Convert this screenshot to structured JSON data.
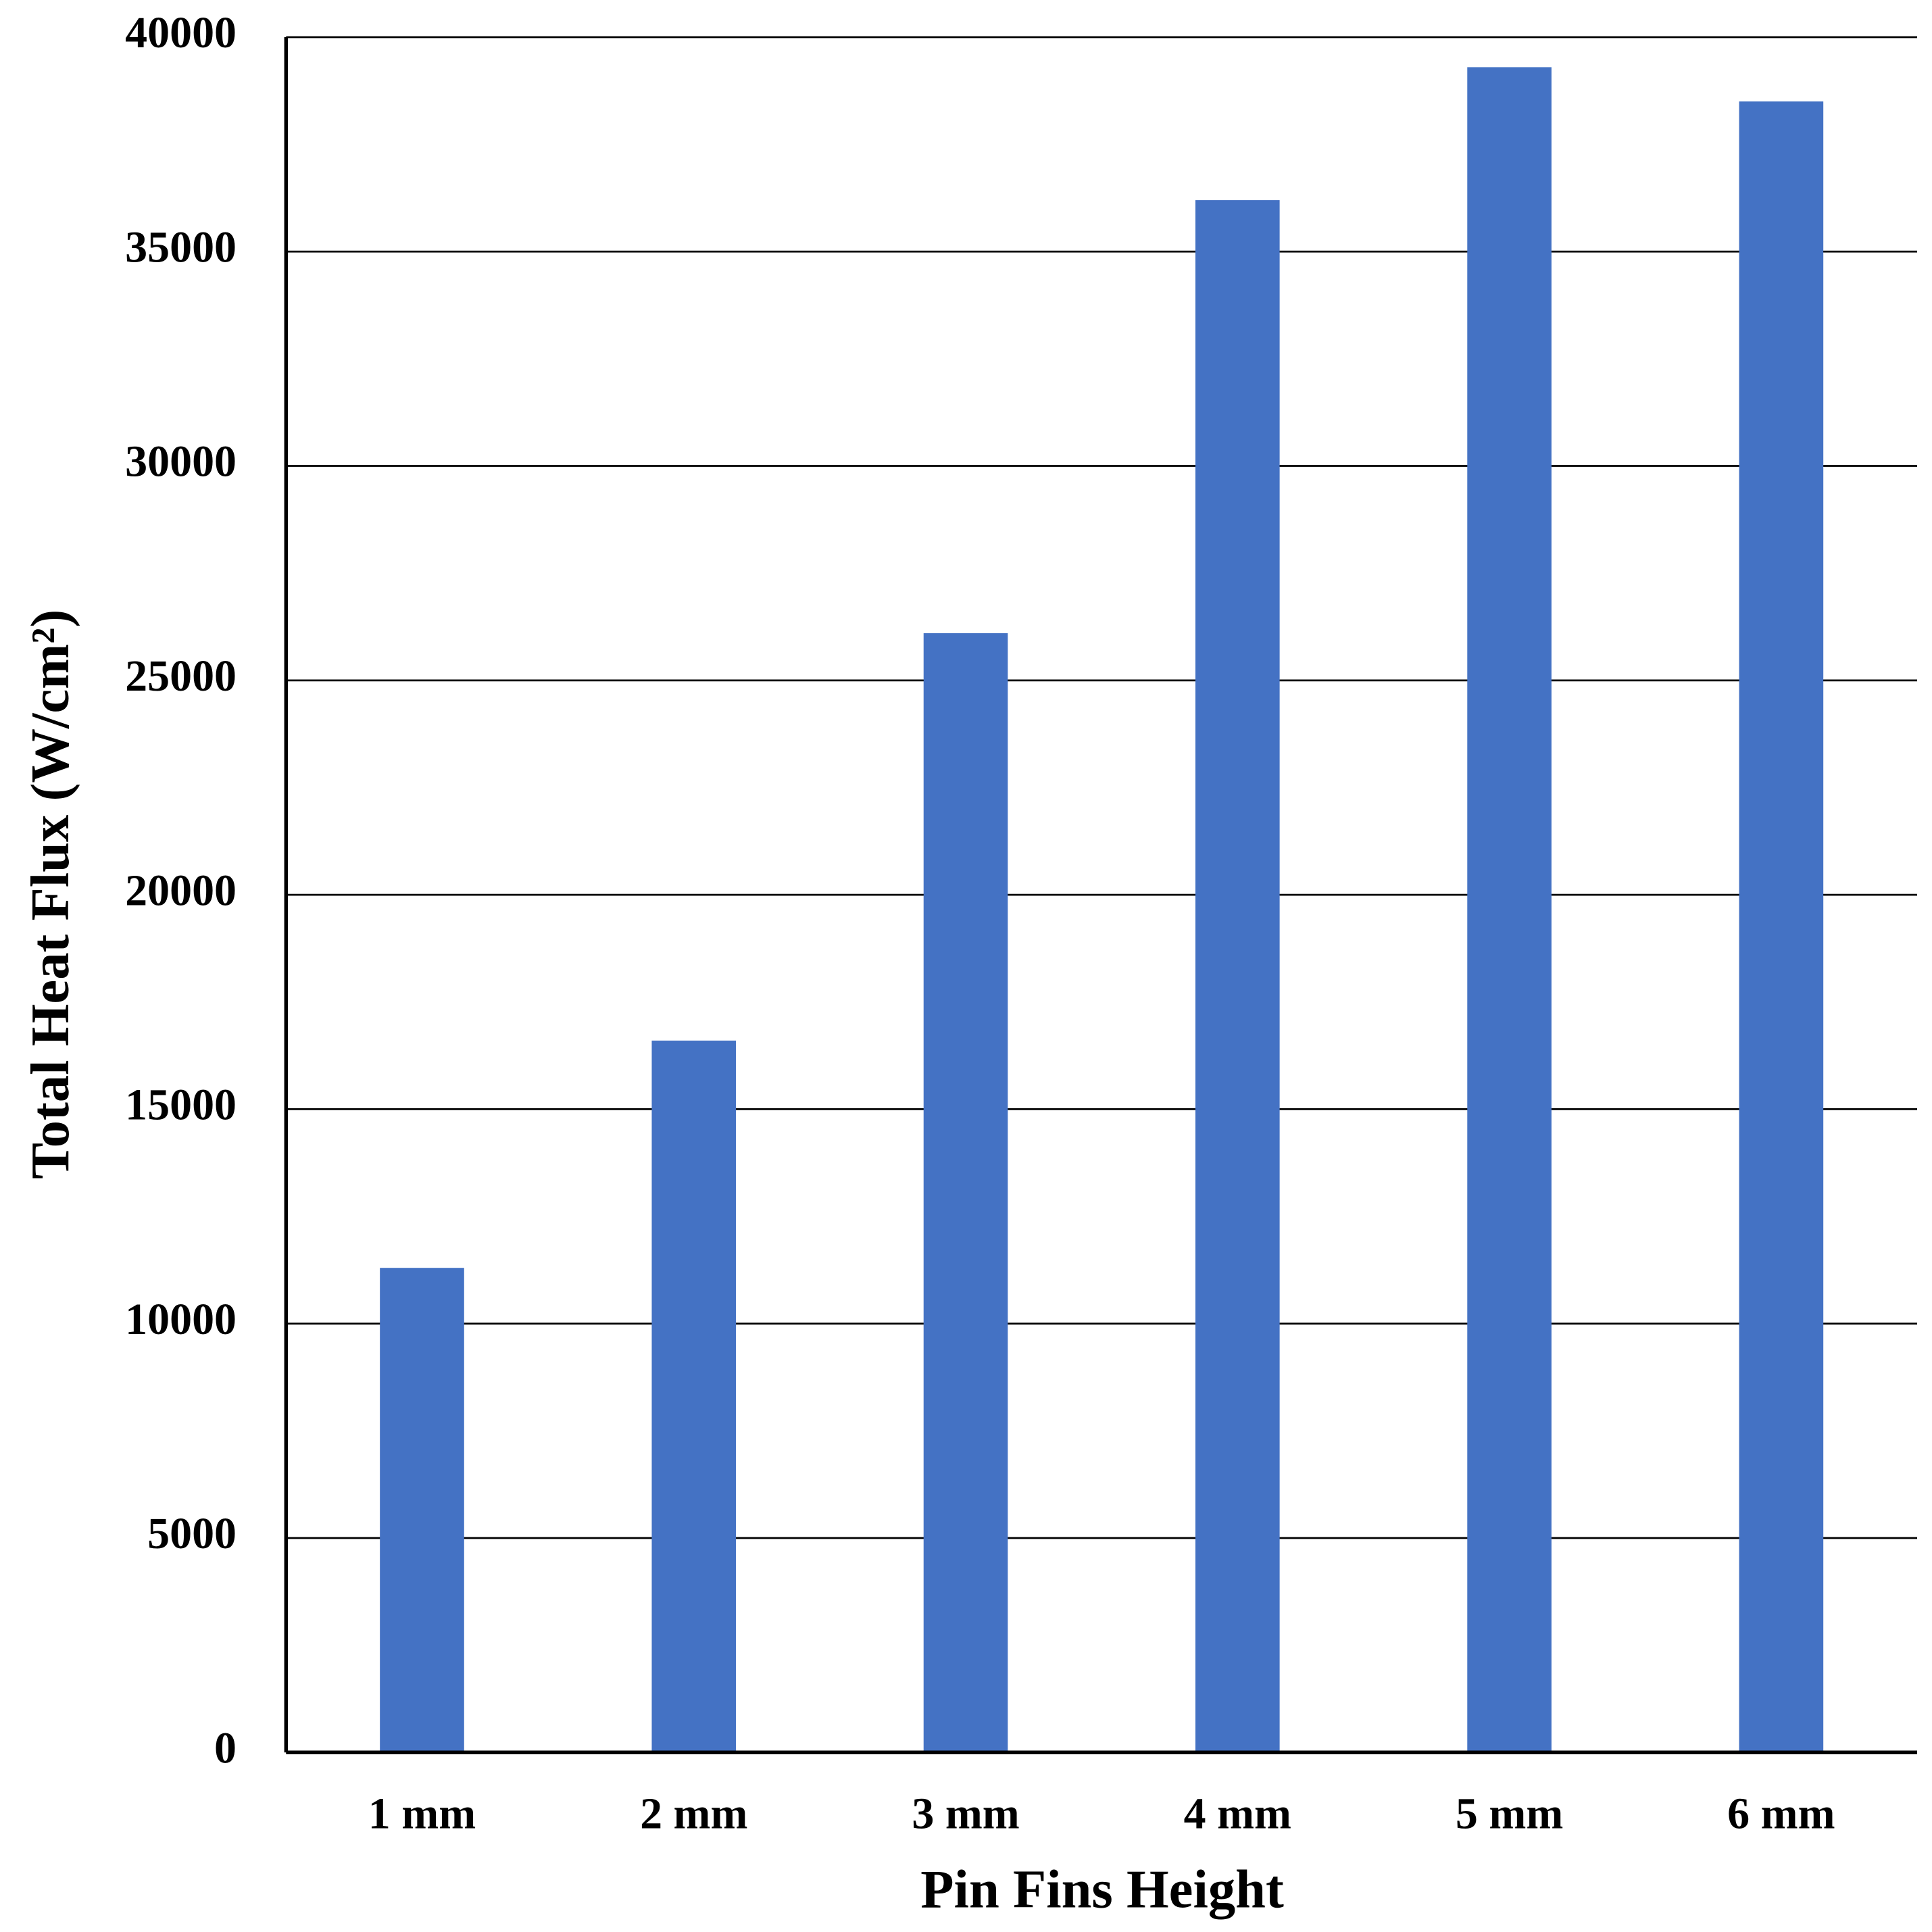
{
  "chart_data": {
    "type": "bar",
    "x_label": "Pin Fins Height",
    "y_label": "Total Heat Flux (W/cm²)",
    "categories": [
      "1 mm",
      "2 mm",
      "3 mm",
      "4 mm",
      "5 mm",
      "6 mm"
    ],
    "values": [
      11300,
      16600,
      26100,
      36200,
      39300,
      38500
    ],
    "color": "#4472c4",
    "ylim": [
      0,
      40000
    ],
    "yticks": [
      0,
      5000,
      10000,
      15000,
      20000,
      25000,
      30000,
      35000,
      40000
    ],
    "grid": true
  }
}
